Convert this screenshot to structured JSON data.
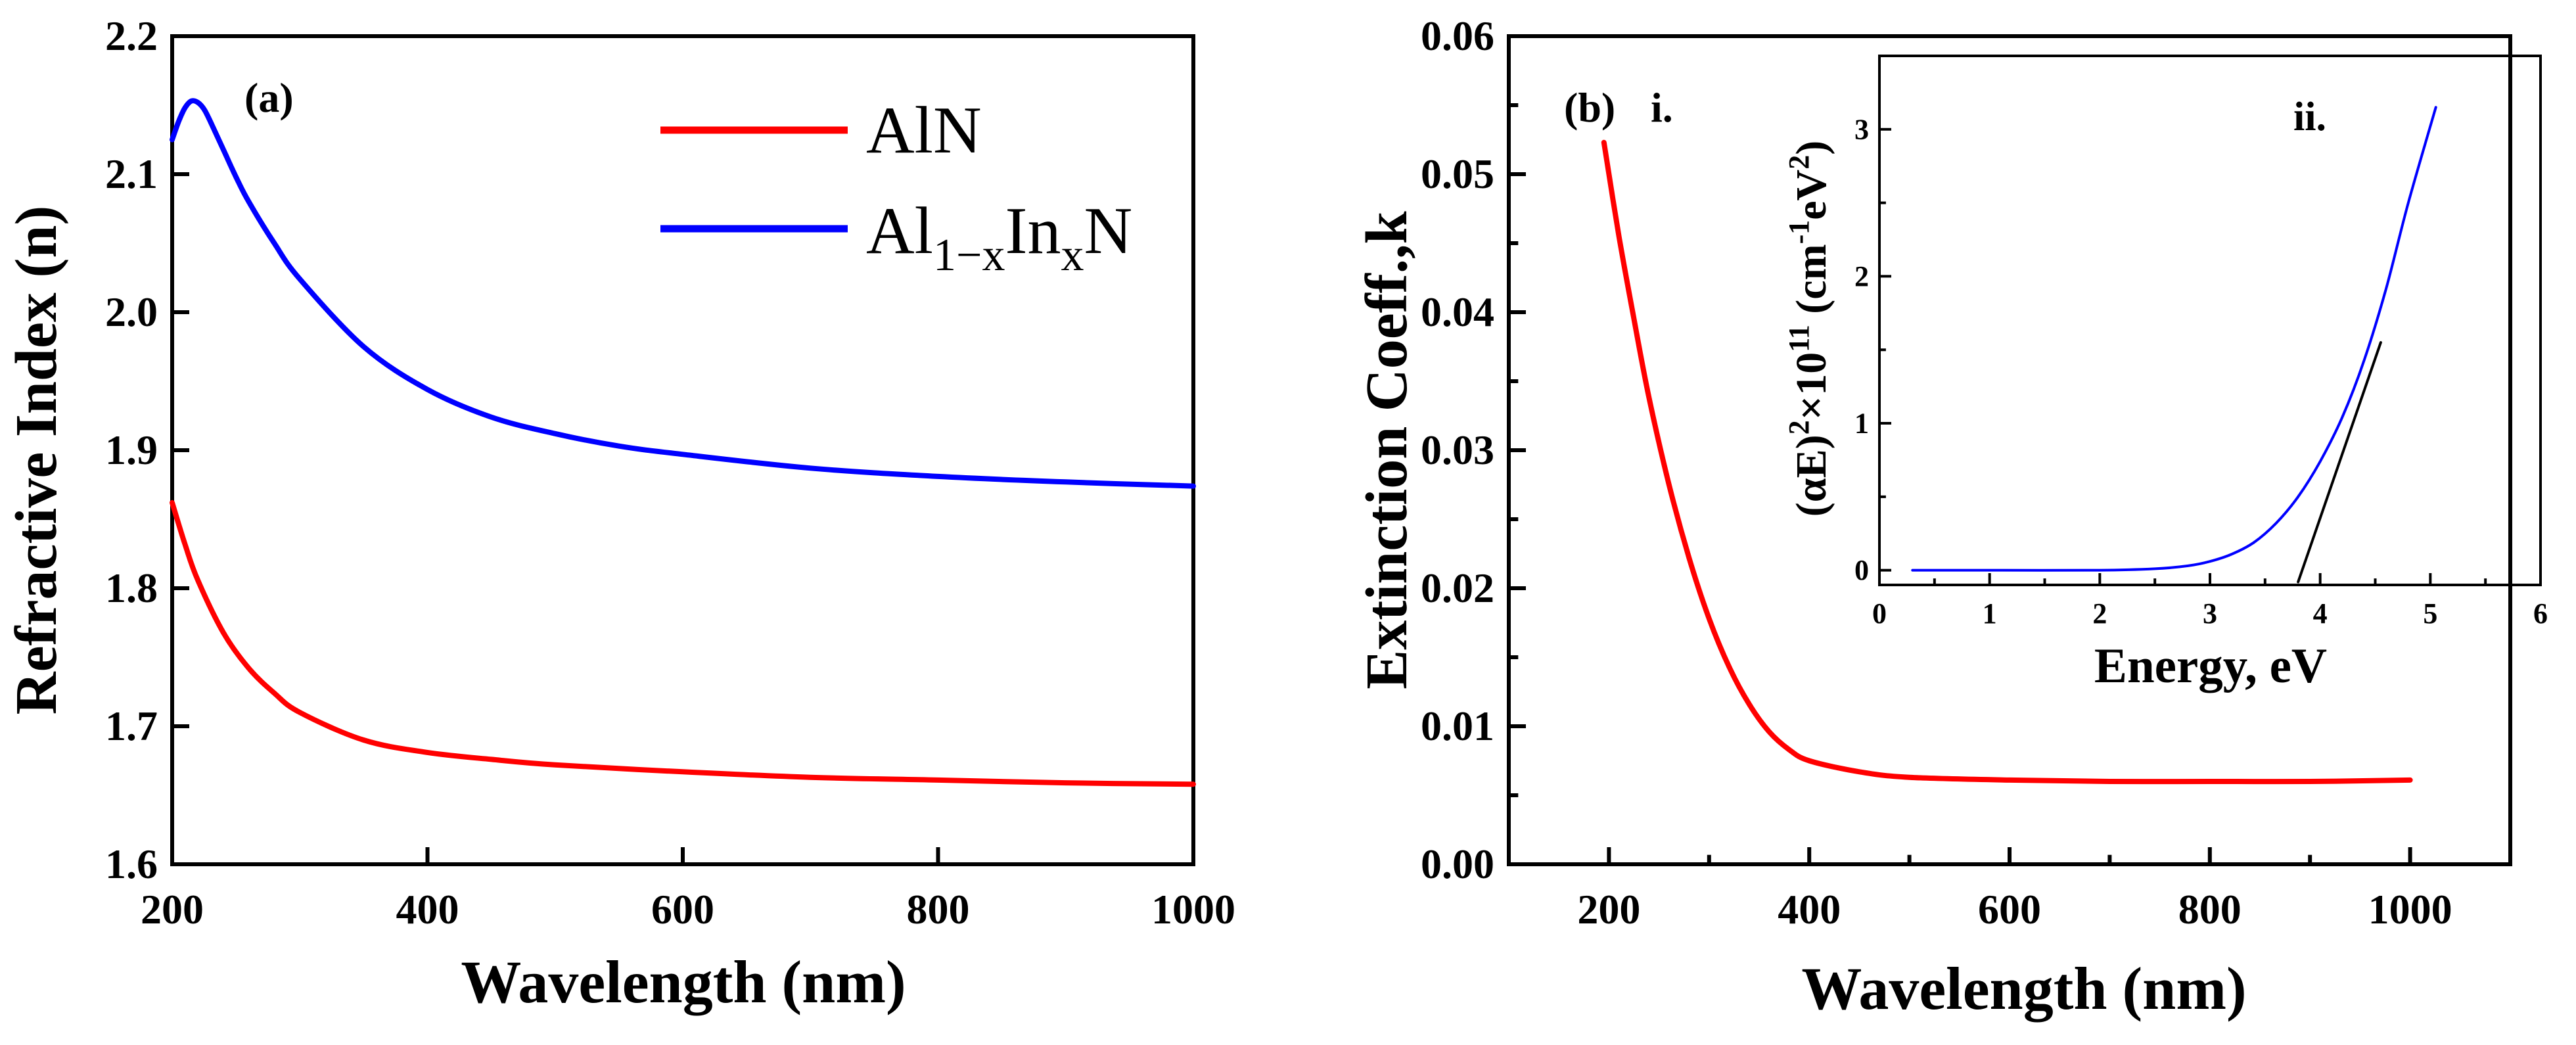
{
  "chart_data": [
    {
      "type": "line",
      "panel_label": "(a)",
      "xlabel": "Wavelength (nm)",
      "ylabel": "Refractive Index (n)",
      "xlim": [
        200,
        1000
      ],
      "ylim": [
        1.6,
        2.2
      ],
      "xticks": [
        200,
        400,
        600,
        800,
        1000
      ],
      "xtick_labels": [
        "200",
        "400",
        "600",
        "800",
        "1000"
      ],
      "yticks": [
        1.6,
        1.7,
        1.8,
        1.9,
        2.0,
        2.1,
        2.2
      ],
      "ytick_labels": [
        "1.6",
        "1.7",
        "1.8",
        "1.9",
        "2.0",
        "2.1",
        "2.2"
      ],
      "legend": {
        "position": "top-right",
        "entries": [
          {
            "name": "AlN",
            "color": "#ff0000"
          },
          {
            "base": "Al",
            "sub1": "1−x",
            "mid": "In",
            "sub2": "x",
            "tail": "N",
            "color": "#0000ff"
          }
        ]
      },
      "series": [
        {
          "name": "AlN",
          "color": "#ff0000",
          "x": [
            200,
            210,
            220,
            240,
            260,
            280,
            300,
            350,
            400,
            450,
            500,
            600,
            700,
            800,
            900,
            1000
          ],
          "y": [
            1.862,
            1.832,
            1.806,
            1.768,
            1.742,
            1.724,
            1.71,
            1.69,
            1.681,
            1.676,
            1.672,
            1.667,
            1.663,
            1.661,
            1.659,
            1.658
          ]
        },
        {
          "name": "Al1-xInxN",
          "color": "#0000ff",
          "x": [
            200,
            205,
            210,
            215,
            220,
            225,
            230,
            240,
            250,
            260,
            280,
            300,
            350,
            400,
            450,
            500,
            550,
            600,
            700,
            800,
            900,
            1000
          ],
          "y": [
            2.125,
            2.138,
            2.148,
            2.153,
            2.152,
            2.147,
            2.138,
            2.118,
            2.098,
            2.08,
            2.05,
            2.024,
            1.975,
            1.944,
            1.924,
            1.912,
            1.903,
            1.897,
            1.887,
            1.881,
            1.877,
            1.874
          ]
        }
      ]
    },
    {
      "type": "line",
      "panel_label": "(b)",
      "curve_label": "i.",
      "xlabel": "Wavelength (nm)",
      "ylabel": "Extinction Coeff.,k",
      "xlim": [
        100,
        1100
      ],
      "ylim": [
        0,
        0.06
      ],
      "xticks": [
        200,
        400,
        600,
        800,
        1000
      ],
      "xtick_labels": [
        "200",
        "400",
        "600",
        "800",
        "1000"
      ],
      "yticks": [
        0,
        0.01,
        0.02,
        0.03,
        0.04,
        0.05,
        0.06
      ],
      "ytick_labels": [
        "0.00",
        "0.01",
        "0.02",
        "0.03",
        "0.04",
        "0.05",
        "0.06"
      ],
      "series": [
        {
          "name": "k",
          "color": "#ff0000",
          "x": [
            195,
            210,
            225,
            240,
            260,
            280,
            300,
            320,
            340,
            360,
            380,
            400,
            450,
            500,
            600,
            700,
            800,
            900,
            1000
          ],
          "y": [
            0.0523,
            0.0455,
            0.0395,
            0.0338,
            0.0275,
            0.0222,
            0.0178,
            0.0143,
            0.0116,
            0.0096,
            0.0083,
            0.0075,
            0.0067,
            0.0063,
            0.0061,
            0.006,
            0.006,
            0.006,
            0.0061
          ]
        }
      ]
    },
    {
      "type": "line",
      "inset": true,
      "panel_label": "ii.",
      "xlabel": "Energy, eV",
      "ylabel_parts": [
        "(αE)",
        "2",
        "×10",
        "11",
        " (cm",
        "-1",
        "eV",
        "2",
        ")"
      ],
      "xlim": [
        0,
        6
      ],
      "ylim": [
        -0.1,
        3.5
      ],
      "xticks": [
        0,
        1,
        2,
        3,
        4,
        5,
        6
      ],
      "xtick_labels": [
        "0",
        "1",
        "2",
        "3",
        "4",
        "5",
        "6"
      ],
      "yticks": [
        0,
        1,
        2,
        3
      ],
      "ytick_labels": [
        "0",
        "1",
        "2",
        "3"
      ],
      "series": [
        {
          "name": "(αE)^2",
          "color": "#0000ff",
          "x": [
            0.3,
            1.0,
            2.0,
            2.5,
            2.8,
            3.0,
            3.2,
            3.4,
            3.6,
            3.8,
            4.0,
            4.2,
            4.4,
            4.6,
            4.8,
            5.05
          ],
          "y": [
            0.0,
            0.0,
            0.0,
            0.01,
            0.03,
            0.06,
            0.11,
            0.19,
            0.32,
            0.5,
            0.74,
            1.04,
            1.43,
            1.92,
            2.5,
            3.15
          ]
        },
        {
          "name": "Tauc fit",
          "color": "#000000",
          "x": [
            3.8,
            4.55
          ],
          "y": [
            -0.08,
            1.55
          ]
        }
      ]
    }
  ]
}
